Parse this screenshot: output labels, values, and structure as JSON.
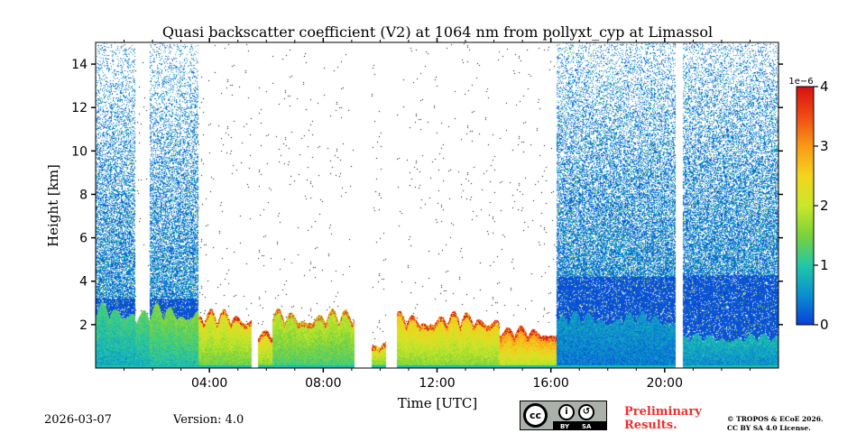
{
  "chart_data": {
    "type": "heatmap",
    "title": "Quasi backscatter coefficient (V2) at 1064 nm from pollyxt_cyp at Limassol",
    "xlabel": "Time [UTC]",
    "ylabel": "Height [km]",
    "xlim_hours": [
      0,
      24
    ],
    "ylim_km": [
      0,
      15
    ],
    "x_ticks": [
      {
        "value": 4,
        "label": "04:00"
      },
      {
        "value": 8,
        "label": "08:00"
      },
      {
        "value": 12,
        "label": "12:00"
      },
      {
        "value": 16,
        "label": "16:00"
      },
      {
        "value": 20,
        "label": "20:00"
      }
    ],
    "y_ticks": [
      {
        "value": 2,
        "label": "2"
      },
      {
        "value": 4,
        "label": "4"
      },
      {
        "value": 6,
        "label": "6"
      },
      {
        "value": 8,
        "label": "8"
      },
      {
        "value": 10,
        "label": "10"
      },
      {
        "value": 12,
        "label": "12"
      },
      {
        "value": 14,
        "label": "14"
      }
    ],
    "colorbar": {
      "min": 0,
      "max": 4,
      "exponent_label": "1e−6",
      "ticks": [
        {
          "value": 0,
          "label": "0"
        },
        {
          "value": 1,
          "label": "1"
        },
        {
          "value": 2,
          "label": "2"
        },
        {
          "value": 3,
          "label": "3"
        },
        {
          "value": 4,
          "label": "4"
        }
      ],
      "colors": [
        "#0a3fd8",
        "#0a8fd0",
        "#22c8a8",
        "#7ad23a",
        "#c8e82a",
        "#f4d41e",
        "#f89a18",
        "#f04a14",
        "#d81010"
      ]
    },
    "profiles": [
      {
        "start": 0.0,
        "end": 1.4,
        "noise_top": 15.0,
        "dense_top": 3.2,
        "boundary_layer_top": 2.7,
        "boundary_layer_value": 1.0
      },
      {
        "start": 1.4,
        "end": 1.9,
        "noise_top": 0.0,
        "dense_top": 0.0,
        "boundary_layer_top": 2.45,
        "boundary_layer_value": 1.1
      },
      {
        "start": 1.9,
        "end": 3.6,
        "noise_top": 15.0,
        "dense_top": 3.2,
        "boundary_layer_top": 2.6,
        "boundary_layer_value": 1.3
      },
      {
        "start": 3.6,
        "end": 5.5,
        "noise_top": 0.0,
        "dense_top": 0.0,
        "boundary_layer_top": 2.4,
        "boundary_layer_value": 2.0
      },
      {
        "start": 5.5,
        "end": 5.7,
        "noise_top": 0.0,
        "dense_top": 0.0,
        "boundary_layer_top": 0.0,
        "boundary_layer_value": 0.0
      },
      {
        "start": 5.7,
        "end": 6.2,
        "noise_top": 0.0,
        "dense_top": 0.0,
        "boundary_layer_top": 1.6,
        "boundary_layer_value": 2.2
      },
      {
        "start": 6.2,
        "end": 9.1,
        "noise_top": 0.0,
        "dense_top": 0.0,
        "boundary_layer_top": 2.4,
        "boundary_layer_value": 1.7
      },
      {
        "start": 9.1,
        "end": 9.7,
        "noise_top": 0.0,
        "dense_top": 0.0,
        "boundary_layer_top": 0.0,
        "boundary_layer_value": 0.0
      },
      {
        "start": 9.7,
        "end": 10.2,
        "noise_top": 0.0,
        "dense_top": 0.0,
        "boundary_layer_top": 1.1,
        "boundary_layer_value": 2.1
      },
      {
        "start": 10.2,
        "end": 10.6,
        "noise_top": 0.0,
        "dense_top": 0.0,
        "boundary_layer_top": 0.0,
        "boundary_layer_value": 0.0
      },
      {
        "start": 10.6,
        "end": 14.2,
        "noise_top": 0.0,
        "dense_top": 0.0,
        "boundary_layer_top": 2.3,
        "boundary_layer_value": 2.2
      },
      {
        "start": 14.2,
        "end": 16.2,
        "noise_top": 0.0,
        "dense_top": 0.0,
        "boundary_layer_top": 1.7,
        "boundary_layer_value": 2.6
      },
      {
        "start": 16.2,
        "end": 20.4,
        "noise_top": 15.0,
        "dense_top": 4.2,
        "boundary_layer_top": 2.3,
        "boundary_layer_value": 0.5
      },
      {
        "start": 20.4,
        "end": 20.65,
        "noise_top": 0.0,
        "dense_top": 0.0,
        "boundary_layer_top": 0.0,
        "boundary_layer_value": 0.0
      },
      {
        "start": 20.65,
        "end": 24.0,
        "noise_top": 15.0,
        "dense_top": 4.3,
        "boundary_layer_top": 1.4,
        "boundary_layer_value": 0.7
      }
    ]
  },
  "footer": {
    "date": "2026-03-07",
    "version": "Version: 4.0",
    "preliminary_line1": "Preliminary",
    "preliminary_line2": "Results.",
    "copyright_line1": "© TROPOS & ECoE 2026.",
    "copyright_line2": "CC BY SA 4.0 License.",
    "license_badge_cc": "cc",
    "license_badge_by": "BY",
    "license_badge_sa": "SA"
  }
}
